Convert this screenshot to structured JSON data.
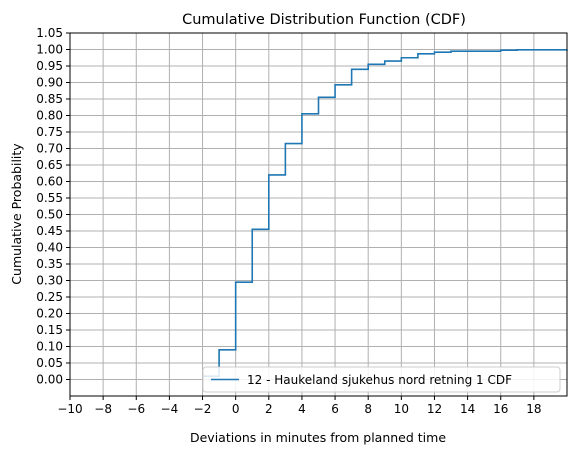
{
  "chart_data": {
    "type": "line",
    "step": "post",
    "title": "Cumulative Distribution Function (CDF)",
    "xlabel": "Deviations in minutes from planned time",
    "ylabel": "Cumulative Probability",
    "xlim": [
      -10,
      20
    ],
    "ylim": [
      -0.05,
      1.05
    ],
    "xticks": [
      -10,
      -8,
      -6,
      -4,
      -2,
      0,
      2,
      4,
      6,
      8,
      10,
      12,
      14,
      16,
      18
    ],
    "xtick_labels": [
      "−10",
      "−8",
      "−6",
      "−4",
      "−2",
      "0",
      "2",
      "4",
      "6",
      "8",
      "10",
      "12",
      "14",
      "16",
      "18"
    ],
    "yticks": [
      0.0,
      0.05,
      0.1,
      0.15,
      0.2,
      0.25,
      0.3,
      0.35,
      0.4,
      0.45,
      0.5,
      0.55,
      0.6,
      0.65,
      0.7,
      0.75,
      0.8,
      0.85,
      0.9,
      0.95,
      1.0,
      1.05
    ],
    "ytick_labels": [
      "0.00",
      "0.05",
      "0.10",
      "0.15",
      "0.20",
      "0.25",
      "0.30",
      "0.35",
      "0.40",
      "0.45",
      "0.50",
      "0.55",
      "0.60",
      "0.65",
      "0.70",
      "0.75",
      "0.80",
      "0.85",
      "0.90",
      "0.95",
      "1.00",
      "1.05"
    ],
    "grid": true,
    "legend": "lower-right",
    "color": "#1f77b4",
    "series": [
      {
        "name": "12 - Haukeland sjukehus nord retning 1 CDF",
        "x": [
          -2,
          -1,
          0,
          1,
          2,
          3,
          4,
          5,
          6,
          7,
          8,
          9,
          10,
          11,
          12,
          13,
          14,
          15,
          16,
          17,
          20
        ],
        "y": [
          0.01,
          0.09,
          0.295,
          0.455,
          0.62,
          0.715,
          0.805,
          0.855,
          0.893,
          0.94,
          0.955,
          0.965,
          0.975,
          0.987,
          0.992,
          0.995,
          0.995,
          0.995,
          0.998,
          0.999,
          1.0
        ]
      }
    ]
  }
}
